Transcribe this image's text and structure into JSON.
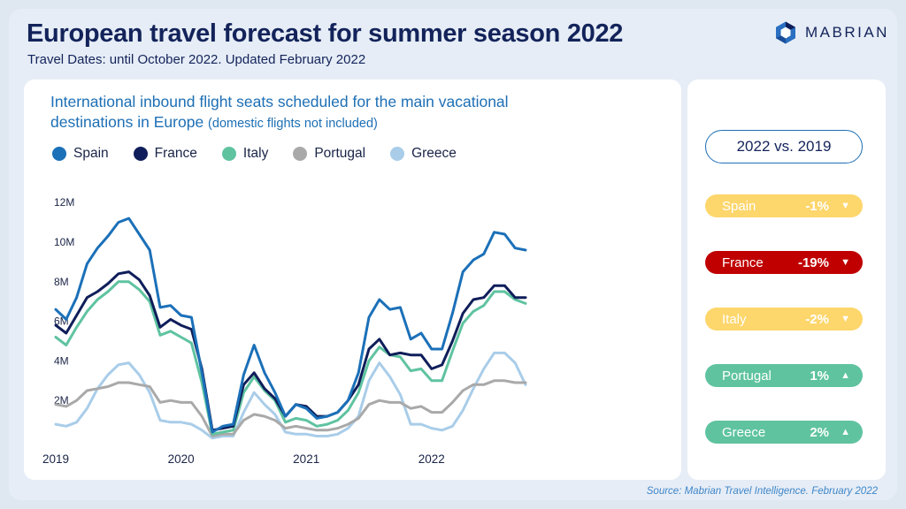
{
  "header": {
    "title": "European travel forecast for summer season 2022",
    "subtitle": "Travel Dates: until October 2022. Updated February 2022",
    "logo_text": "MABRIAN"
  },
  "chart_data": {
    "type": "line",
    "title": "International inbound flight seats scheduled for the main vacational destinations in Europe",
    "title_note": "(domestic flights not included)",
    "xlabel": "",
    "ylabel": "",
    "x_ticks": [
      "2019",
      "2020",
      "2021",
      "2022"
    ],
    "y_ticks": [
      "2M",
      "4M",
      "6M",
      "8M",
      "10M",
      "12M"
    ],
    "ylim": [
      0,
      12.5
    ],
    "y_unit": "M",
    "x": [
      "2019-01",
      "2019-02",
      "2019-03",
      "2019-04",
      "2019-05",
      "2019-06",
      "2019-07",
      "2019-08",
      "2019-09",
      "2019-10",
      "2019-11",
      "2019-12",
      "2020-01",
      "2020-02",
      "2020-03",
      "2020-04",
      "2020-05",
      "2020-06",
      "2020-07",
      "2020-08",
      "2020-09",
      "2020-10",
      "2020-11",
      "2020-12",
      "2021-01",
      "2021-02",
      "2021-03",
      "2021-04",
      "2021-05",
      "2021-06",
      "2021-07",
      "2021-08",
      "2021-09",
      "2021-10",
      "2021-11",
      "2021-12",
      "2022-01",
      "2022-02",
      "2022-03",
      "2022-04",
      "2022-05",
      "2022-06",
      "2022-07",
      "2022-08",
      "2022-09",
      "2022-10"
    ],
    "legend_position": "top-left",
    "grid": false,
    "series": [
      {
        "name": "Spain",
        "color": "#1b70b8",
        "values": [
          6.6,
          6.1,
          7.2,
          8.9,
          9.7,
          10.3,
          11.0,
          11.2,
          10.4,
          9.6,
          6.7,
          6.8,
          6.3,
          6.2,
          3.4,
          0.4,
          0.7,
          0.8,
          3.3,
          4.8,
          3.4,
          2.4,
          1.2,
          1.8,
          1.6,
          1.1,
          1.2,
          1.4,
          2.0,
          3.4,
          6.2,
          7.1,
          6.6,
          6.7,
          5.1,
          5.4,
          4.6,
          4.6,
          6.4,
          8.5,
          9.1,
          9.4,
          10.5,
          10.4,
          9.7,
          9.6
        ]
      },
      {
        "name": "France",
        "color": "#0f1e5a",
        "values": [
          5.8,
          5.4,
          6.3,
          7.2,
          7.5,
          7.9,
          8.4,
          8.5,
          8.1,
          7.3,
          5.7,
          6.1,
          5.8,
          5.6,
          3.6,
          0.5,
          0.6,
          0.7,
          2.8,
          3.4,
          2.6,
          2.1,
          1.2,
          1.8,
          1.7,
          1.2,
          1.2,
          1.4,
          2.0,
          2.8,
          4.6,
          5.1,
          4.3,
          4.4,
          4.3,
          4.3,
          3.6,
          3.8,
          5.0,
          6.4,
          7.1,
          7.2,
          7.8,
          7.8,
          7.2,
          7.2
        ]
      },
      {
        "name": "Italy",
        "color": "#5fc3a0",
        "values": [
          5.2,
          4.8,
          5.7,
          6.5,
          7.1,
          7.5,
          8.0,
          8.0,
          7.6,
          7.0,
          5.3,
          5.5,
          5.2,
          4.9,
          2.9,
          0.3,
          0.4,
          0.5,
          2.4,
          3.2,
          2.5,
          2.0,
          0.9,
          1.1,
          1.0,
          0.7,
          0.8,
          1.0,
          1.5,
          2.4,
          4.0,
          4.7,
          4.3,
          4.2,
          3.5,
          3.6,
          3.0,
          3.0,
          4.5,
          5.9,
          6.5,
          6.8,
          7.5,
          7.5,
          7.1,
          6.9
        ]
      },
      {
        "name": "Portugal",
        "color": "#a9a9a9",
        "values": [
          1.8,
          1.7,
          2.0,
          2.5,
          2.6,
          2.7,
          2.9,
          2.9,
          2.8,
          2.7,
          1.9,
          2.0,
          1.9,
          1.9,
          1.2,
          0.2,
          0.3,
          0.3,
          1.0,
          1.3,
          1.2,
          1.0,
          0.6,
          0.7,
          0.6,
          0.5,
          0.5,
          0.6,
          0.8,
          1.1,
          1.8,
          2.0,
          1.9,
          1.9,
          1.6,
          1.7,
          1.4,
          1.4,
          1.9,
          2.5,
          2.8,
          2.8,
          3.0,
          3.0,
          2.9,
          2.9
        ]
      },
      {
        "name": "Greece",
        "color": "#a9cde9",
        "values": [
          0.8,
          0.7,
          0.9,
          1.6,
          2.6,
          3.3,
          3.8,
          3.9,
          3.3,
          2.4,
          1.0,
          0.9,
          0.9,
          0.8,
          0.5,
          0.1,
          0.2,
          0.2,
          1.4,
          2.4,
          1.8,
          1.3,
          0.4,
          0.3,
          0.3,
          0.2,
          0.2,
          0.3,
          0.6,
          1.2,
          3.0,
          3.9,
          3.2,
          2.3,
          0.8,
          0.8,
          0.6,
          0.5,
          0.7,
          1.5,
          2.6,
          3.6,
          4.4,
          4.4,
          3.9,
          2.8
        ]
      }
    ]
  },
  "comparison": {
    "header": "2022 vs. 2019",
    "items": [
      {
        "country": "Spain",
        "value": "-1%",
        "arrow": "▼",
        "color": "#fdd66c"
      },
      {
        "country": "France",
        "value": "-19%",
        "arrow": "▼",
        "color": "#c00000"
      },
      {
        "country": "Italy",
        "value": "-2%",
        "arrow": "▼",
        "color": "#fdd66c"
      },
      {
        "country": "Portugal",
        "value": "1%",
        "arrow": "▲",
        "color": "#5fc3a0"
      },
      {
        "country": "Greece",
        "value": "2%",
        "arrow": "▲",
        "color": "#5fc3a0"
      }
    ]
  },
  "source": "Source: Mabrian Travel Intelligence. February 2022"
}
